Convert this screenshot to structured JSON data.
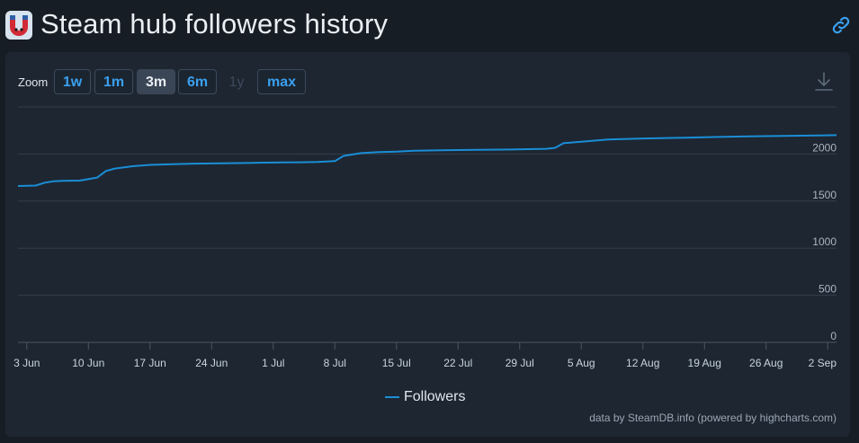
{
  "header": {
    "title": "Steam hub followers history",
    "app_icon": "steamdb-magnet-icon",
    "link_icon": "link-icon"
  },
  "toolbar": {
    "zoom_label": "Zoom",
    "buttons": [
      {
        "label": "1w",
        "state": "normal"
      },
      {
        "label": "1m",
        "state": "normal"
      },
      {
        "label": "3m",
        "state": "active"
      },
      {
        "label": "6m",
        "state": "normal"
      },
      {
        "label": "1y",
        "state": "disabled"
      },
      {
        "label": "max",
        "state": "normal"
      }
    ],
    "export_icon": "download-icon"
  },
  "legend": {
    "label": "Followers"
  },
  "credits": "data by SteamDB.info (powered by highcharts.com)",
  "colors": {
    "background": "#171d25",
    "panel": "#1e2631",
    "series": "#1a8ed6",
    "accent": "#3aa0f0",
    "grid": "#3a4452"
  },
  "chart_data": {
    "type": "line",
    "x_type": "date",
    "x_tick_labels": [
      "3 Jun",
      "10 Jun",
      "17 Jun",
      "24 Jun",
      "1 Jul",
      "8 Jul",
      "15 Jul",
      "22 Jul",
      "29 Jul",
      "5 Aug",
      "12 Aug",
      "19 Aug",
      "26 Aug",
      "2 Sep"
    ],
    "y_tick_labels": [
      "0",
      "500",
      "1000",
      "1500",
      "2000"
    ],
    "ylim": [
      0,
      2500
    ],
    "xlim": [
      "2024-06-02",
      "2024-09-03"
    ],
    "grid": true,
    "legend_position": "bottom-center",
    "series": [
      {
        "name": "Followers",
        "x": [
          "2024-06-02",
          "2024-06-04",
          "2024-06-05",
          "2024-06-06",
          "2024-06-07",
          "2024-06-09",
          "2024-06-11",
          "2024-06-12",
          "2024-06-13",
          "2024-06-15",
          "2024-06-17",
          "2024-06-19",
          "2024-06-21",
          "2024-06-22",
          "2024-06-24",
          "2024-06-26",
          "2024-06-28",
          "2024-06-30",
          "2024-07-02",
          "2024-07-04",
          "2024-07-06",
          "2024-07-08",
          "2024-07-09",
          "2024-07-11",
          "2024-07-13",
          "2024-07-15",
          "2024-07-17",
          "2024-07-20",
          "2024-07-24",
          "2024-07-28",
          "2024-08-01",
          "2024-08-02",
          "2024-08-03",
          "2024-08-05",
          "2024-08-08",
          "2024-08-12",
          "2024-08-16",
          "2024-08-20",
          "2024-08-24",
          "2024-08-28",
          "2024-09-01",
          "2024-09-03"
        ],
        "y": [
          1660,
          1665,
          1695,
          1710,
          1715,
          1718,
          1750,
          1820,
          1845,
          1870,
          1885,
          1890,
          1895,
          1898,
          1900,
          1903,
          1905,
          1908,
          1910,
          1912,
          1915,
          1925,
          1980,
          2010,
          2020,
          2025,
          2035,
          2040,
          2045,
          2048,
          2055,
          2065,
          2115,
          2130,
          2155,
          2165,
          2172,
          2180,
          2188,
          2193,
          2197,
          2200
        ]
      }
    ]
  }
}
